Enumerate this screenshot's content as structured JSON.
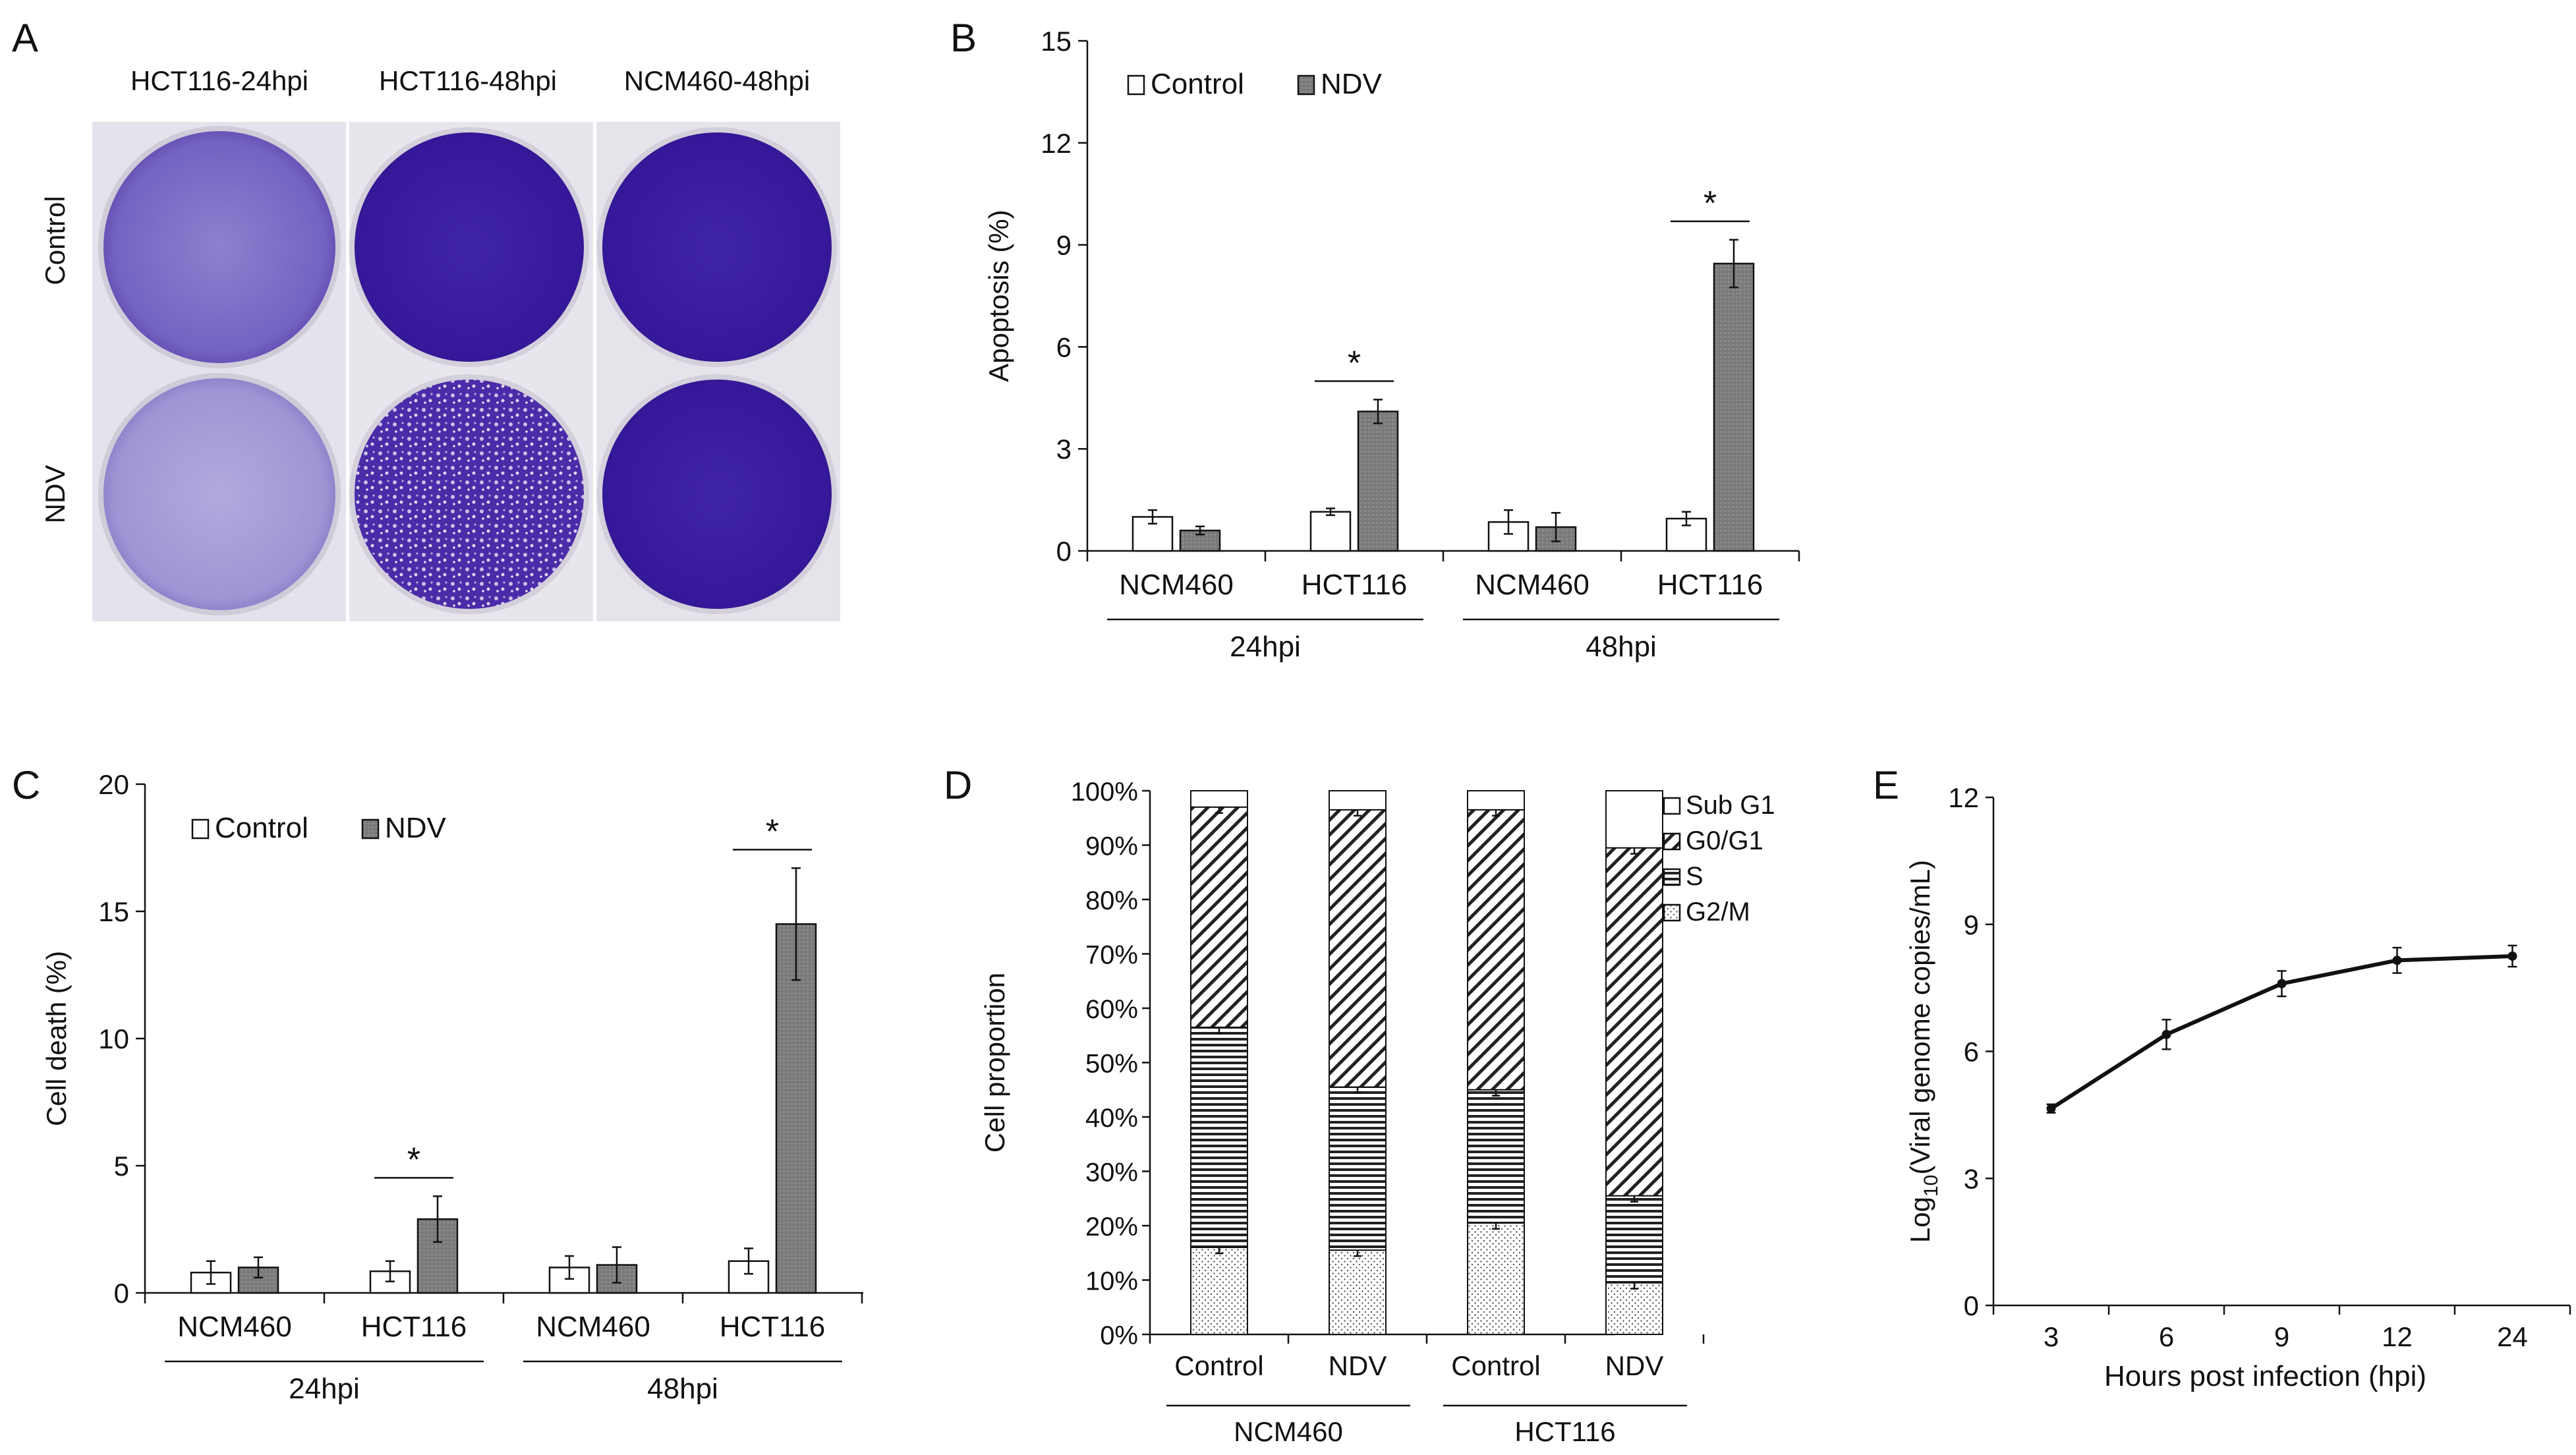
{
  "panel_labels": {
    "a": "A",
    "b": "B",
    "c": "C",
    "d": "D",
    "e": "E"
  },
  "colors": {
    "control_fill": "#ffffff",
    "ndv_fill": "#7f7f7f",
    "crystal_violet_dark": "#3b1f9a",
    "crystal_violet_light": "#9c8fd2",
    "plate_bg": "#e6e3ea",
    "axis": "#111111"
  },
  "panel_a": {
    "column_labels": [
      "HCT116-24hpi",
      "HCT116-48hpi",
      "NCM460-48hpi"
    ],
    "row_labels": [
      "Control",
      "NDV"
    ]
  },
  "chart_data": [
    {
      "panel": "B",
      "type": "bar",
      "ylabel": "Apoptosis (%)",
      "ylim": [
        0,
        15
      ],
      "yticks": [
        0,
        3,
        6,
        9,
        12,
        15
      ],
      "categories": [
        "NCM460",
        "HCT116",
        "NCM460",
        "HCT116"
      ],
      "groups": [
        {
          "label": "24hpi",
          "span": [
            0,
            1
          ]
        },
        {
          "label": "48hpi",
          "span": [
            2,
            3
          ]
        }
      ],
      "series": [
        {
          "name": "Control",
          "values": [
            1.0,
            1.15,
            0.85,
            0.95
          ],
          "errors": [
            0.2,
            0.1,
            0.35,
            0.2
          ]
        },
        {
          "name": "NDV",
          "values": [
            0.6,
            4.1,
            0.7,
            8.45
          ],
          "errors": [
            0.12,
            0.35,
            0.42,
            0.7
          ]
        }
      ],
      "significance": [
        {
          "category": 1,
          "label": "*"
        },
        {
          "category": 3,
          "label": "*"
        }
      ],
      "legend": "top-left",
      "grid": false
    },
    {
      "panel": "C",
      "type": "bar",
      "ylabel": "Cell death (%)",
      "ylim": [
        0,
        20
      ],
      "yticks": [
        0,
        5,
        10,
        15,
        20
      ],
      "categories": [
        "NCM460",
        "HCT116",
        "NCM460",
        "HCT116"
      ],
      "groups": [
        {
          "label": "24hpi",
          "span": [
            0,
            1
          ]
        },
        {
          "label": "48hpi",
          "span": [
            2,
            3
          ]
        }
      ],
      "series": [
        {
          "name": "Control",
          "values": [
            0.8,
            0.85,
            1.0,
            1.25
          ],
          "errors": [
            0.45,
            0.4,
            0.45,
            0.5
          ]
        },
        {
          "name": "NDV",
          "values": [
            1.0,
            2.9,
            1.1,
            14.5
          ],
          "errors": [
            0.4,
            0.9,
            0.7,
            2.2
          ]
        }
      ],
      "significance": [
        {
          "category": 1,
          "label": "*"
        },
        {
          "category": 3,
          "label": "*"
        }
      ],
      "legend": "top-left",
      "grid": false
    },
    {
      "panel": "D",
      "type": "bar",
      "stacked": true,
      "ylabel": "Cell proportion",
      "ylim": [
        0,
        100
      ],
      "yticks": [
        "0%",
        "10%",
        "20%",
        "30%",
        "40%",
        "50%",
        "60%",
        "70%",
        "80%",
        "90%",
        "100%"
      ],
      "categories": [
        "Control",
        "NDV",
        "Control",
        "NDV"
      ],
      "groups": [
        {
          "label": "NCM460",
          "span": [
            0,
            1
          ]
        },
        {
          "label": "HCT116",
          "span": [
            2,
            3
          ]
        }
      ],
      "series": [
        {
          "name": "G2/M",
          "pattern": "dots",
          "values": [
            16,
            15.5,
            20.5,
            9.5
          ]
        },
        {
          "name": "S",
          "pattern": "horizontal",
          "values": [
            40.5,
            30,
            24.5,
            16
          ]
        },
        {
          "name": "G0/G1",
          "pattern": "diagonal",
          "values": [
            40.5,
            51,
            51.5,
            64
          ]
        },
        {
          "name": "Sub G1",
          "pattern": "none",
          "values": [
            3,
            3.5,
            3.5,
            10.5
          ]
        }
      ],
      "legend": "right",
      "grid": false
    },
    {
      "panel": "E",
      "type": "line",
      "xlabel": "Hours post infection (hpi)",
      "ylabel_parts": {
        "pre": "Log",
        "sub": "10",
        "post": "(Viral genome copies/mL)"
      },
      "x": [
        "3",
        "6",
        "9",
        "12",
        "24"
      ],
      "ylim": [
        0,
        12
      ],
      "yticks": [
        0,
        3,
        6,
        9,
        12
      ],
      "series": [
        {
          "values": [
            4.65,
            6.4,
            7.6,
            8.15,
            8.25
          ],
          "errors": [
            0.1,
            0.35,
            0.3,
            0.3,
            0.25
          ]
        }
      ],
      "grid": false
    }
  ]
}
